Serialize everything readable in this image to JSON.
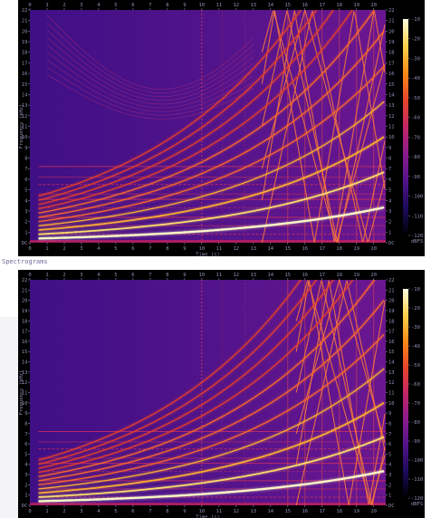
{
  "caption": "Spectrograms",
  "chart_data": [
    {
      "type": "heatmap",
      "variant": "spectrogram",
      "title": "",
      "xlabel": "Time (s)",
      "ylabel": "Frequency (kHz)",
      "colorbar_unit": "dBFS",
      "xlim": [
        0,
        20.7
      ],
      "ylim": [
        0,
        22
      ],
      "zlim": [
        -120,
        -10
      ],
      "x_ticks": [
        "0",
        "1",
        "2",
        "3",
        "4",
        "5",
        "6",
        "7",
        "8",
        "9",
        "10",
        "11",
        "12",
        "13",
        "14",
        "15",
        "16",
        "17",
        "18",
        "19",
        "20"
      ],
      "y_ticks": [
        "DC",
        "1",
        "2",
        "3",
        "4",
        "5",
        "6",
        "7",
        "8",
        "9",
        "10",
        "11",
        "12",
        "13",
        "14",
        "15",
        "16",
        "17",
        "18",
        "19",
        "20",
        "21",
        "22"
      ],
      "colorbar_ticks": [
        "-10",
        "-20",
        "-30",
        "-40",
        "-50",
        "-60",
        "-70",
        "-80",
        "-90",
        "-100",
        "-110",
        "-120"
      ],
      "colormap": [
        "#000000",
        "#1b0a5c",
        "#51138a",
        "#8a1a8e",
        "#c22766",
        "#e8452a",
        "#fb8a18",
        "#fdd24a",
        "#ffffe0"
      ],
      "background_color": "#51138a",
      "sweep": {
        "start_time": 0.5,
        "fundamental_start_khz": 0.4,
        "fundamental_end_khz": 3.3,
        "end_time": 20.5,
        "harmonics": [
          1,
          2,
          3,
          4,
          5,
          6,
          7,
          8,
          9,
          10,
          11
        ]
      },
      "interference_start_time": 10,
      "aliasing_start_time": 13.5,
      "has_upper_left_aliasing": true
    },
    {
      "type": "heatmap",
      "variant": "spectrogram",
      "title": "",
      "xlabel": "Time (s)",
      "ylabel": "Frequency (kHz)",
      "colorbar_unit": "dBFS",
      "xlim": [
        0,
        20.7
      ],
      "ylim": [
        0,
        22
      ],
      "zlim": [
        -120,
        -10
      ],
      "x_ticks": [
        "0",
        "1",
        "2",
        "3",
        "4",
        "5",
        "6",
        "7",
        "8",
        "9",
        "10",
        "11",
        "12",
        "13",
        "14",
        "15",
        "16",
        "17",
        "18",
        "19",
        "20"
      ],
      "y_ticks": [
        "DC",
        "1",
        "2",
        "3",
        "4",
        "5",
        "6",
        "7",
        "8",
        "9",
        "10",
        "11",
        "12",
        "13",
        "14",
        "15",
        "16",
        "17",
        "18",
        "19",
        "20",
        "21",
        "22"
      ],
      "colorbar_ticks": [
        "-10",
        "-20",
        "-30",
        "-40",
        "-50",
        "-60",
        "-70",
        "-80",
        "-90",
        "-100",
        "-110",
        "-120"
      ],
      "colormap": [
        "#000000",
        "#1b0a5c",
        "#51138a",
        "#8a1a8e",
        "#c22766",
        "#e8452a",
        "#fb8a18",
        "#fdd24a",
        "#ffffe0"
      ],
      "background_color": "#51138a",
      "sweep": {
        "start_time": 0.5,
        "fundamental_start_khz": 0.4,
        "fundamental_end_khz": 3.3,
        "end_time": 20.5,
        "harmonics": [
          1,
          2,
          3,
          4,
          5,
          6,
          7,
          8,
          9,
          10,
          11
        ]
      },
      "interference_start_time": 10,
      "aliasing_start_time": 15.5,
      "has_upper_left_aliasing": false
    }
  ]
}
